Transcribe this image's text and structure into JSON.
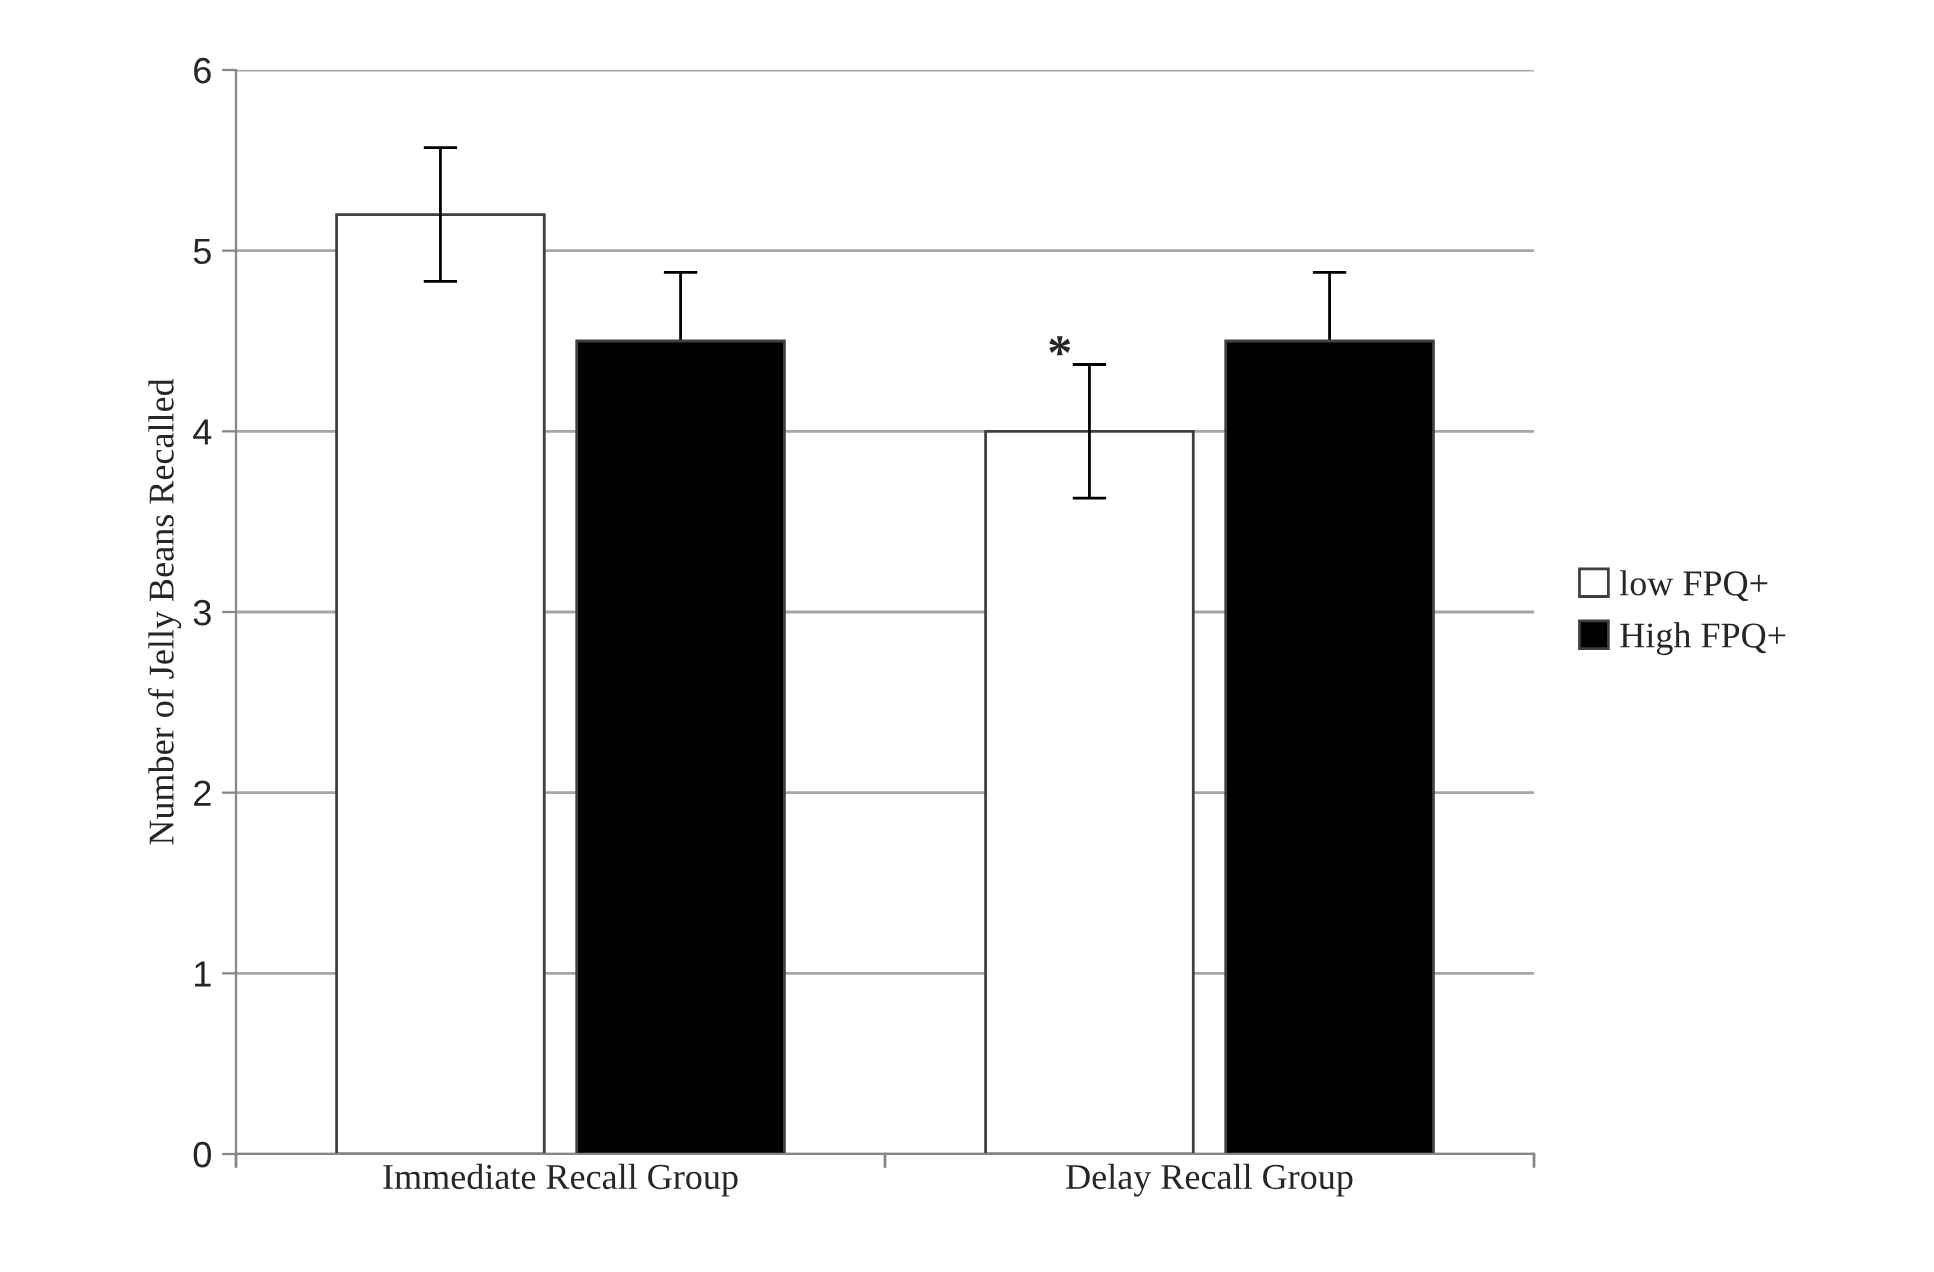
{
  "chart_data": {
    "type": "bar",
    "ylabel": "Number of Jelly Beans Recalled",
    "categories": [
      "Immediate Recall Group",
      "Delay Recall Group"
    ],
    "series": [
      {
        "name": "low FPQ+",
        "color": "#ffffff",
        "values": [
          5.2,
          4.0
        ],
        "errors": [
          0.37,
          0.37
        ]
      },
      {
        "name": "High FPQ+",
        "color": "#000000",
        "values": [
          4.5,
          4.5
        ],
        "errors": [
          0.38,
          0.38
        ]
      }
    ],
    "ylim": [
      0,
      6
    ],
    "yticks": [
      0,
      1,
      2,
      3,
      4,
      5,
      6
    ],
    "grid": "y",
    "legend": "right",
    "annotations": [
      "*"
    ]
  }
}
